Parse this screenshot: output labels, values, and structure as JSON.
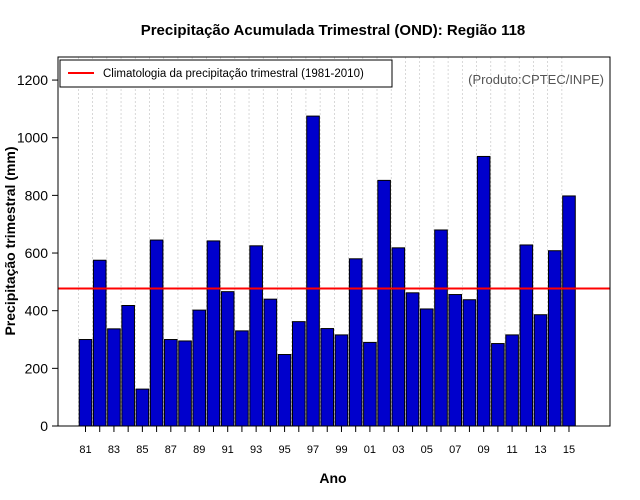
{
  "chart_data": {
    "type": "bar",
    "title": "Precipitação Acumulada Trimestral (OND): Região 118",
    "xlabel": "Ano",
    "ylabel": "Precipitação trimestral (mm)",
    "ylim": [
      0,
      1280
    ],
    "yticks": [
      0,
      200,
      400,
      600,
      800,
      1000,
      1200
    ],
    "ytick_labels": [
      "0",
      "200",
      "400",
      "600",
      "800",
      "1000",
      "1200"
    ],
    "xtick_labels": [
      "81",
      "83",
      "85",
      "87",
      "89",
      "91",
      "93",
      "95",
      "97",
      "99",
      "01",
      "03",
      "05",
      "07",
      "09",
      "11",
      "13",
      "15"
    ],
    "categories": [
      "1981",
      "1982",
      "1983",
      "1984",
      "1985",
      "1986",
      "1987",
      "1988",
      "1989",
      "1990",
      "1991",
      "1992",
      "1993",
      "1994",
      "1995",
      "1996",
      "1997",
      "1998",
      "1999",
      "2000",
      "2001",
      "2002",
      "2003",
      "2004",
      "2005",
      "2006",
      "2007",
      "2008",
      "2009",
      "2010",
      "2011",
      "2012",
      "2013",
      "2014",
      "2015"
    ],
    "values": [
      300,
      575,
      337,
      418,
      128,
      645,
      300,
      295,
      402,
      642,
      466,
      330,
      625,
      440,
      248,
      362,
      1075,
      338,
      316,
      580,
      290,
      852,
      618,
      462,
      406,
      680,
      456,
      438,
      935,
      286,
      316,
      628,
      386,
      608,
      798
    ],
    "climatology": 477,
    "bar_color": "#0000cc",
    "line_color": "#ff0000",
    "grid": true,
    "legend": {
      "position": "top-left",
      "entries": [
        "Climatologia da precipitação trimestral (1981-2010)"
      ]
    },
    "annotation": "(Produto:CPTEC/INPE)"
  }
}
